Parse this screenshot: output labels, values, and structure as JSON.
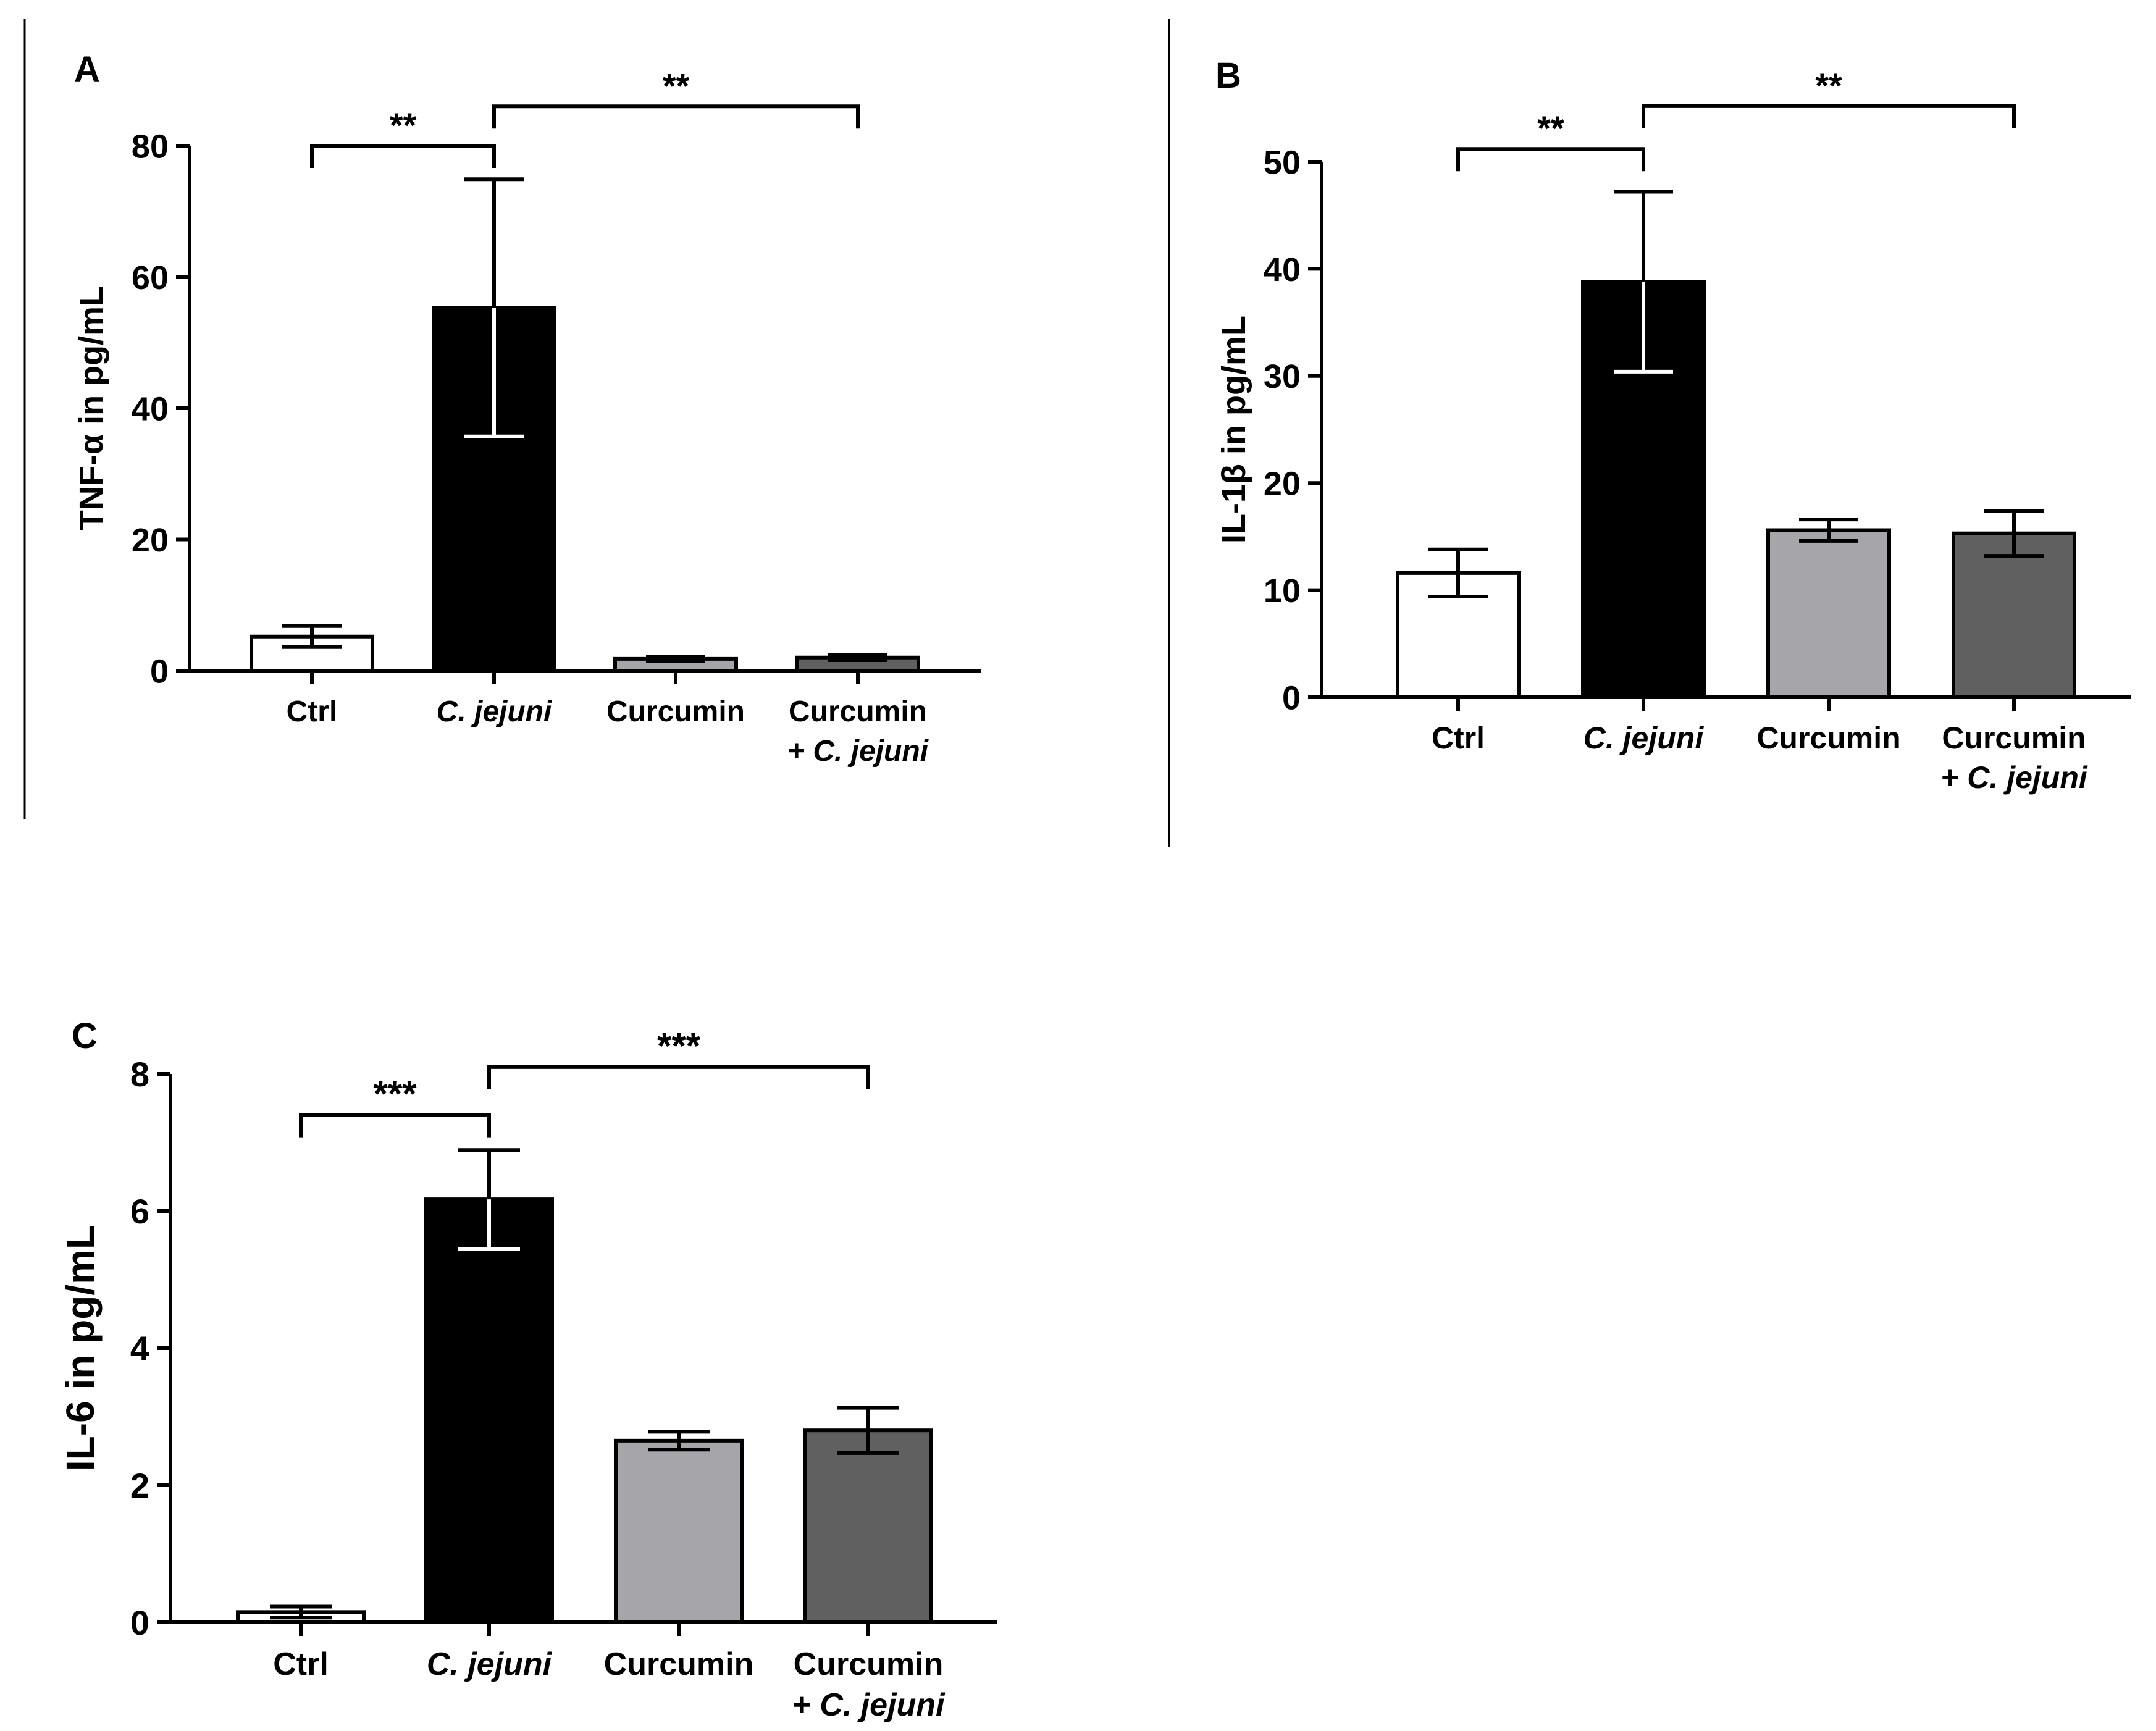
{
  "chart_data": [
    {
      "panel": "A",
      "type": "bar",
      "ylabel": "TNF-α in pg/mL",
      "ylim": [
        0,
        80
      ],
      "yticks": [
        0,
        20,
        40,
        60,
        80
      ],
      "categories": [
        {
          "lines": [
            {
              "text": "Ctrl",
              "italic": false
            }
          ]
        },
        {
          "lines": [
            {
              "text": "C. jejuni",
              "italic": true
            }
          ]
        },
        {
          "lines": [
            {
              "text": "Curcumin",
              "italic": false
            }
          ]
        },
        {
          "lines": [
            {
              "text": "Curcumin",
              "italic": false
            },
            {
              "text": "+ C. jejuni",
              "italic": true
            }
          ]
        }
      ],
      "values": [
        5.2,
        55.3,
        1.8,
        2.0
      ],
      "errors": [
        1.6,
        19.6,
        0.3,
        0.4
      ],
      "fills": [
        "#ffffff",
        "#000000",
        "#a6a6aa",
        "#606060"
      ],
      "significance": [
        {
          "from": 0,
          "to": 1,
          "label": "**",
          "at": 80
        },
        {
          "from": 1,
          "to": 3,
          "label": "**",
          "at": 86
        }
      ]
    },
    {
      "panel": "B",
      "type": "bar",
      "ylabel": "IL-1β in pg/mL",
      "ylim": [
        0,
        50
      ],
      "yticks": [
        0,
        10,
        20,
        30,
        40,
        50
      ],
      "categories": [
        {
          "lines": [
            {
              "text": "Ctrl",
              "italic": false
            }
          ]
        },
        {
          "lines": [
            {
              "text": "C. jejuni",
              "italic": true
            }
          ]
        },
        {
          "lines": [
            {
              "text": "Curcumin",
              "italic": false
            }
          ]
        },
        {
          "lines": [
            {
              "text": "Curcumin",
              "italic": false
            },
            {
              "text": "+ C. jejuni",
              "italic": true
            }
          ]
        }
      ],
      "values": [
        11.6,
        38.8,
        15.6,
        15.3
      ],
      "errors": [
        2.2,
        8.4,
        1.0,
        2.1
      ],
      "fills": [
        "#ffffff",
        "#000000",
        "#a6a6aa",
        "#606060"
      ],
      "significance": [
        {
          "from": 0,
          "to": 1,
          "label": "**",
          "at": 51.2
        },
        {
          "from": 1,
          "to": 3,
          "label": "**",
          "at": 55.2
        }
      ]
    },
    {
      "panel": "C",
      "type": "bar",
      "ylabel": "IL-6 in pg/mL",
      "ylim": [
        0,
        8
      ],
      "yticks": [
        0,
        2,
        4,
        6,
        8
      ],
      "categories": [
        {
          "lines": [
            {
              "text": "Ctrl",
              "italic": false
            }
          ]
        },
        {
          "lines": [
            {
              "text": "C. jejuni",
              "italic": true
            }
          ]
        },
        {
          "lines": [
            {
              "text": "Curcumin",
              "italic": false
            }
          ]
        },
        {
          "lines": [
            {
              "text": "Curcumin",
              "italic": false
            },
            {
              "text": "+ C. jejuni",
              "italic": true
            }
          ]
        }
      ],
      "values": [
        0.15,
        6.17,
        2.65,
        2.8
      ],
      "errors": [
        0.08,
        0.72,
        0.13,
        0.33
      ],
      "fills": [
        "#ffffff",
        "#000000",
        "#a6a6aa",
        "#606060"
      ],
      "significance": [
        {
          "from": 0,
          "to": 1,
          "label": "***",
          "at": 7.4
        },
        {
          "from": 1,
          "to": 3,
          "label": "***",
          "at": 8.1
        }
      ]
    }
  ]
}
